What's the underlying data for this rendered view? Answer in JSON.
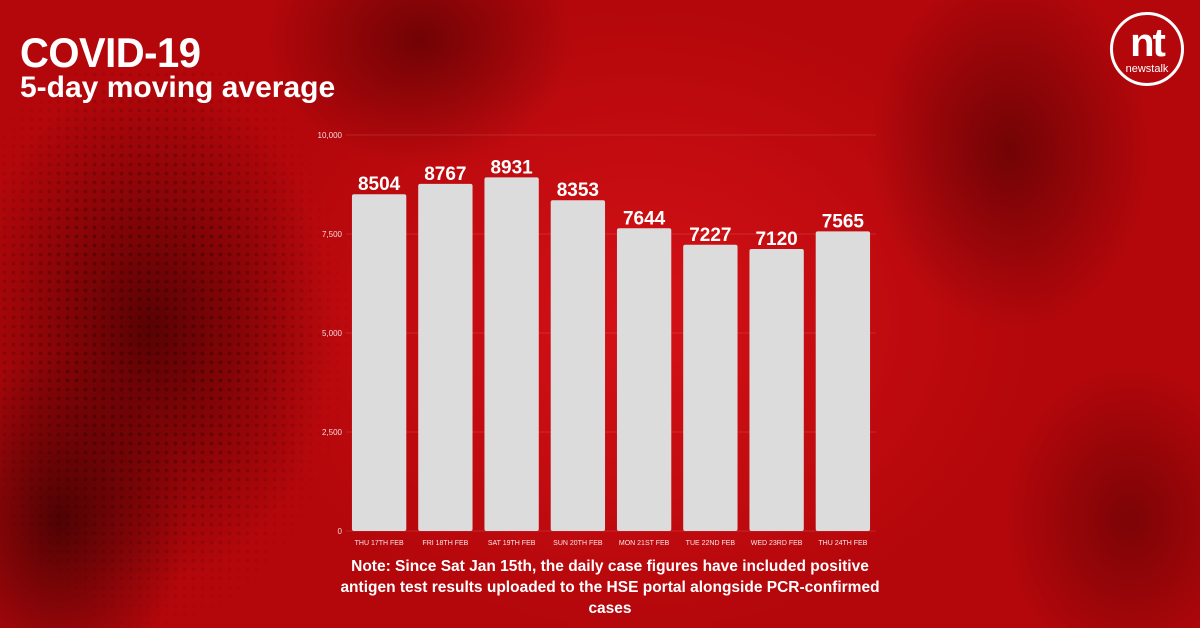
{
  "header": {
    "title": "COVID-19",
    "subtitle": "5-day moving average"
  },
  "logo": {
    "mark": "nt",
    "name": "newstalk"
  },
  "note": "Note: Since Sat Jan 15th, the daily case figures have included positive antigen test results uploaded to the HSE portal alongside PCR-confirmed cases",
  "colors": {
    "background": "#b3070b",
    "bar": "#dcdcdc",
    "text": "#ffffff"
  },
  "chart_data": {
    "type": "bar",
    "categories": [
      "THU 17TH FEB",
      "FRI 18TH FEB",
      "SAT 19TH FEB",
      "SUN 20TH FEB",
      "MON 21ST FEB",
      "TUE 22ND FEB",
      "WED 23RD FEB",
      "THU 24TH FEB"
    ],
    "values": [
      8504,
      8767,
      8931,
      8353,
      7644,
      7227,
      7120,
      7565
    ],
    "data_labels": [
      "8504",
      "8767",
      "8931",
      "8353",
      "7644",
      "7227",
      "7120",
      "7565"
    ],
    "y_ticks": [
      0,
      2500,
      5000,
      7500,
      10000
    ],
    "y_tick_labels": [
      "0",
      "2,500",
      "5,000",
      "7,500",
      "10,000"
    ],
    "ylim": [
      0,
      10000
    ],
    "grid": true,
    "legend": "none"
  }
}
